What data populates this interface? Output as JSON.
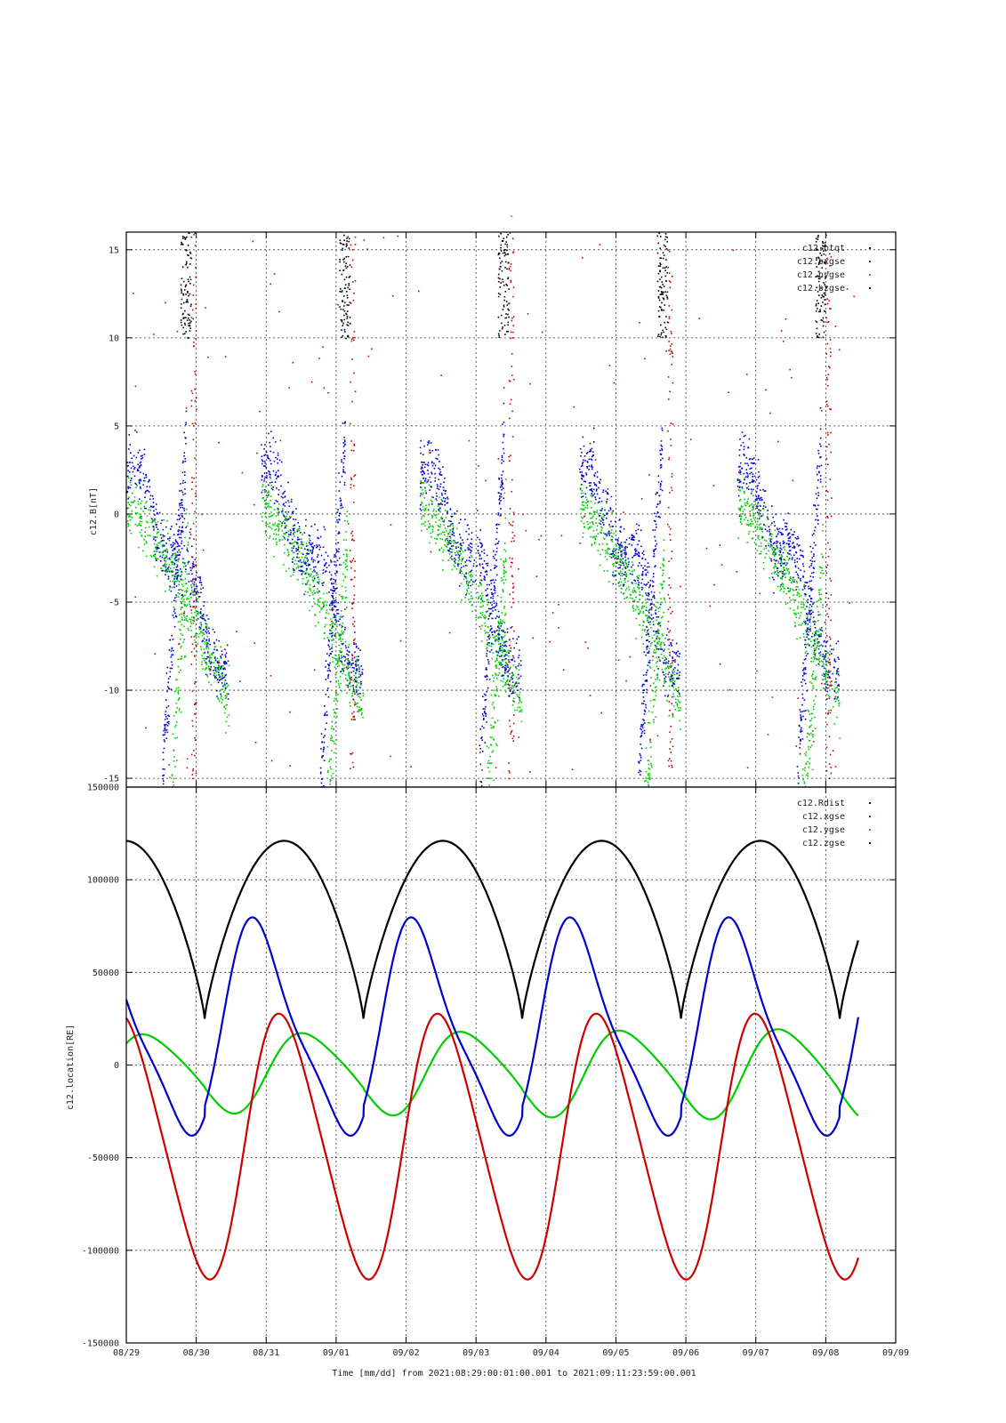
{
  "chart_data": [
    {
      "type": "scatter",
      "title": "-",
      "ylabel": "c12.B[nT]",
      "xlabel": "",
      "ylim": [
        -15.5,
        16
      ],
      "yticks": [
        -15,
        -10,
        -5,
        0,
        5,
        10,
        15
      ],
      "xlim_days": [
        0,
        11
      ],
      "grid": true,
      "legend_position": "top-right",
      "series": [
        {
          "name": "c12.btqt",
          "color": "#000000"
        },
        {
          "name": "c12.bxgse",
          "color": "#cc0000"
        },
        {
          "name": "c12.bygse",
          "color": "#00cc00"
        },
        {
          "name": "c12.bzgse",
          "color": "#0000cc"
        }
      ]
    },
    {
      "type": "line",
      "ylabel": "c12.location[RE]",
      "xlabel": "Time [mm/dd]  from 2021:08:29:00:01:00.001  to  2021:09:11:23:59:00.001",
      "ylim": [
        -150000,
        150000
      ],
      "yticks": [
        "-150000",
        "-100000",
        "-50000",
        "0",
        "50000",
        "100000",
        "150000"
      ],
      "xticks": [
        "08/29",
        "08/30",
        "08/31",
        "09/01",
        "09/02",
        "09/03",
        "09/04",
        "09/05",
        "09/06",
        "09/07",
        "09/08",
        "09/09"
      ],
      "grid": true,
      "legend_position": "top-right",
      "series": [
        {
          "name": "c12.Rdist",
          "color": "#000000",
          "min": 25000,
          "max": 121000
        },
        {
          "name": "c12.xgse",
          "color": "#cc0000",
          "min": -114000,
          "max": 26000
        },
        {
          "name": "c12.ygse",
          "color": "#00cc00",
          "min": -27000,
          "max": 24000
        },
        {
          "name": "c12.zgse",
          "color": "#0000cc",
          "min": -36000,
          "max": 72000
        }
      ],
      "orbit_period_days": 2.27,
      "perigee_days": [
        1.12,
        3.39,
        5.66,
        7.93,
        10.2
      ],
      "end_day": 10.47
    }
  ]
}
